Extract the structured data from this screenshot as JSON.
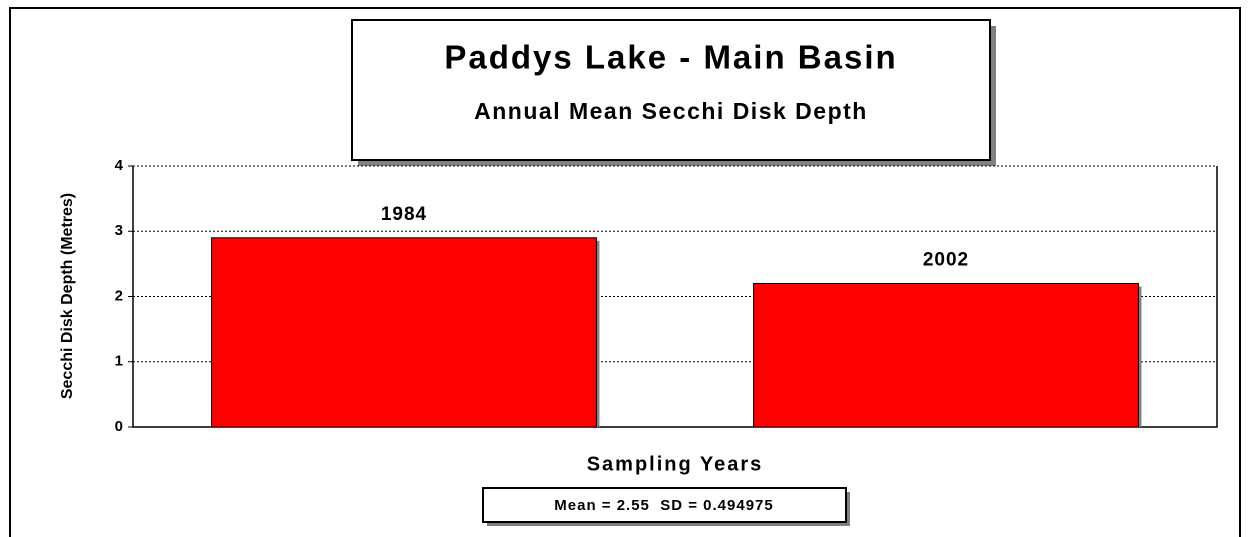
{
  "chart_data": {
    "type": "bar",
    "title": "Paddys Lake - Main Basin",
    "subtitle": "Annual Mean Secchi Disk Depth",
    "y_label": "Secchi Disk Depth (Metres)",
    "x_label": "Sampling Years",
    "annotation": "Mean = 2.55  SD = 0.494975",
    "categories": [
      "1984",
      "2002"
    ],
    "values": [
      2.9,
      2.2
    ],
    "color": "#ff0000",
    "ylim": [
      0,
      4
    ],
    "yticks": [
      0,
      1,
      2,
      3,
      4
    ],
    "grid": true
  }
}
